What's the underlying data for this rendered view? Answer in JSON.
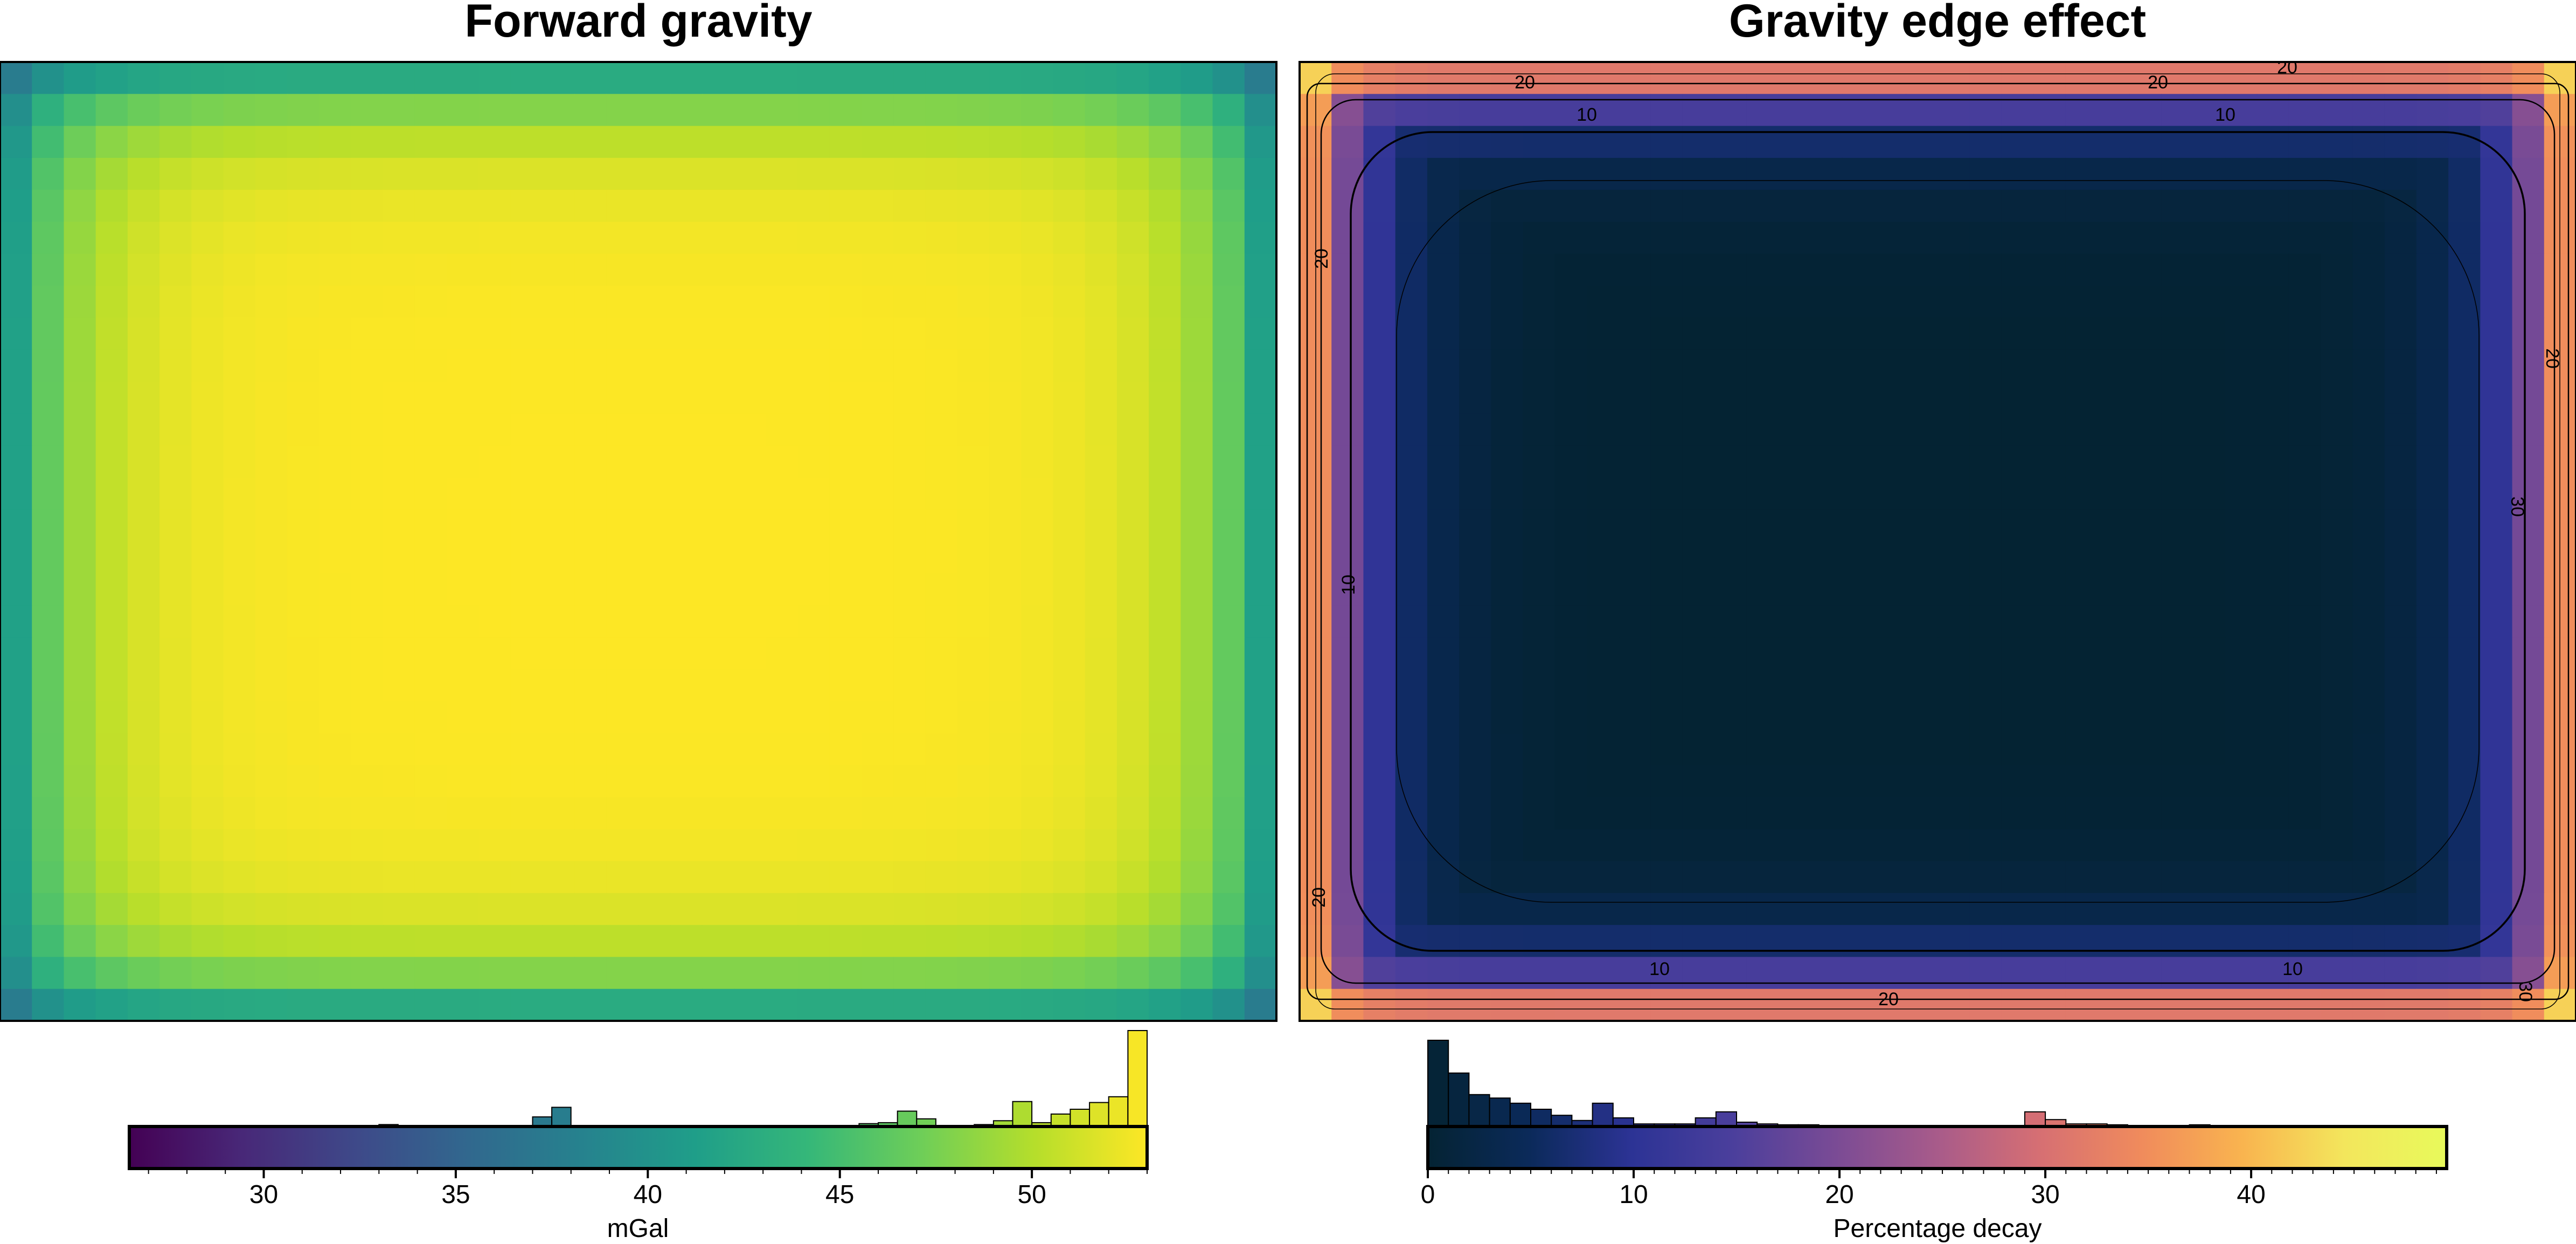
{
  "chart_data": [
    {
      "type": "heatmap",
      "title": "Forward gravity",
      "colormap": "viridis",
      "value_range": [
        26.5,
        53
      ],
      "colorbar": {
        "label": "mGal",
        "ticks": [
          30,
          35,
          40,
          45,
          50
        ],
        "range": [
          26.5,
          53
        ]
      },
      "histogram": {
        "bin_edges": [
          26.5,
          27.0,
          27.5,
          28.0,
          28.5,
          29.0,
          29.5,
          30.0,
          30.5,
          31.0,
          31.5,
          32.0,
          32.5,
          33.0,
          33.5,
          34.0,
          34.5,
          35.0,
          35.5,
          36.0,
          36.5,
          37.0,
          37.5,
          38.0,
          38.5,
          39.0,
          39.5,
          40.0,
          40.5,
          41.0,
          41.5,
          42.0,
          42.5,
          43.0,
          43.5,
          44.0,
          44.5,
          45.0,
          45.5,
          46.0,
          46.5,
          47.0,
          47.5,
          48.0,
          48.5,
          49.0,
          49.5,
          50.0,
          50.5,
          51.0,
          51.5,
          52.0,
          52.5
        ],
        "counts_relative": [
          0,
          0,
          0,
          0,
          0,
          0,
          0,
          0,
          0,
          0,
          0,
          0,
          0,
          0.02,
          0,
          0,
          0,
          0,
          0.01,
          0.01,
          0.01,
          0.1,
          0.2,
          0,
          0,
          0,
          0,
          0,
          0,
          0,
          0,
          0,
          0,
          0,
          0,
          0,
          0.01,
          0.01,
          0.03,
          0.04,
          0.16,
          0.08,
          0.01,
          0.01,
          0.02,
          0.06,
          0.26,
          0.04,
          0.13,
          0.18,
          0.25,
          0.31,
          1.0
        ]
      }
    },
    {
      "type": "heatmap",
      "title": "Gravity edge effect",
      "colormap": "thermal",
      "value_range": [
        0,
        49.5
      ],
      "contour_levels": [
        10,
        20,
        30
      ],
      "contour_labels": [
        "20",
        "20",
        "10",
        "10",
        "20",
        "20",
        "10",
        "30",
        "20",
        "10",
        "10",
        "20",
        "20",
        "30"
      ],
      "colorbar": {
        "label": "Percentage decay",
        "ticks": [
          0,
          10,
          20,
          30,
          40
        ],
        "range": [
          0,
          49.5
        ]
      },
      "histogram": {
        "bin_edges": [
          0,
          1,
          2,
          3,
          4,
          5,
          6,
          7,
          8,
          9,
          10,
          11,
          12,
          13,
          14,
          15,
          16,
          17,
          18,
          19,
          20,
          21,
          22,
          23,
          24,
          25,
          26,
          27,
          28,
          29,
          30,
          31,
          32,
          33,
          34,
          35,
          36,
          37,
          38,
          39,
          40,
          41,
          42,
          43,
          44,
          45,
          46,
          47,
          48,
          49
        ],
        "counts_relative": [
          1.0,
          0.62,
          0.37,
          0.33,
          0.27,
          0.2,
          0.13,
          0.07,
          0.27,
          0.1,
          0.03,
          0.03,
          0.03,
          0.1,
          0.17,
          0.05,
          0.03,
          0.02,
          0.02,
          0,
          0,
          0,
          0,
          0,
          0,
          0,
          0,
          0,
          0,
          0.17,
          0.08,
          0.03,
          0.03,
          0.02,
          0,
          0,
          0,
          0.02,
          0,
          0,
          0,
          0,
          0,
          0,
          0,
          0,
          0,
          0,
          0
        ]
      }
    }
  ]
}
